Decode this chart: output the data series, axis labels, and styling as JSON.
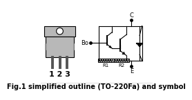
{
  "fig_label": "Fig.1 simplified outline (TO-220Fa) and symbol",
  "pin_label": "1 2 3",
  "terminal_C": "C",
  "terminal_B": "Bo",
  "terminal_E": "E",
  "terminal_R1": "R1",
  "terminal_R2": "R2",
  "bg_color": "#ffffff",
  "line_color": "#000000",
  "body_color": "#b8b8b8",
  "text_color": "#000000",
  "label_fontsize": 5.5,
  "pin_fontsize": 8.0,
  "fig_label_fontsize": 7.0
}
